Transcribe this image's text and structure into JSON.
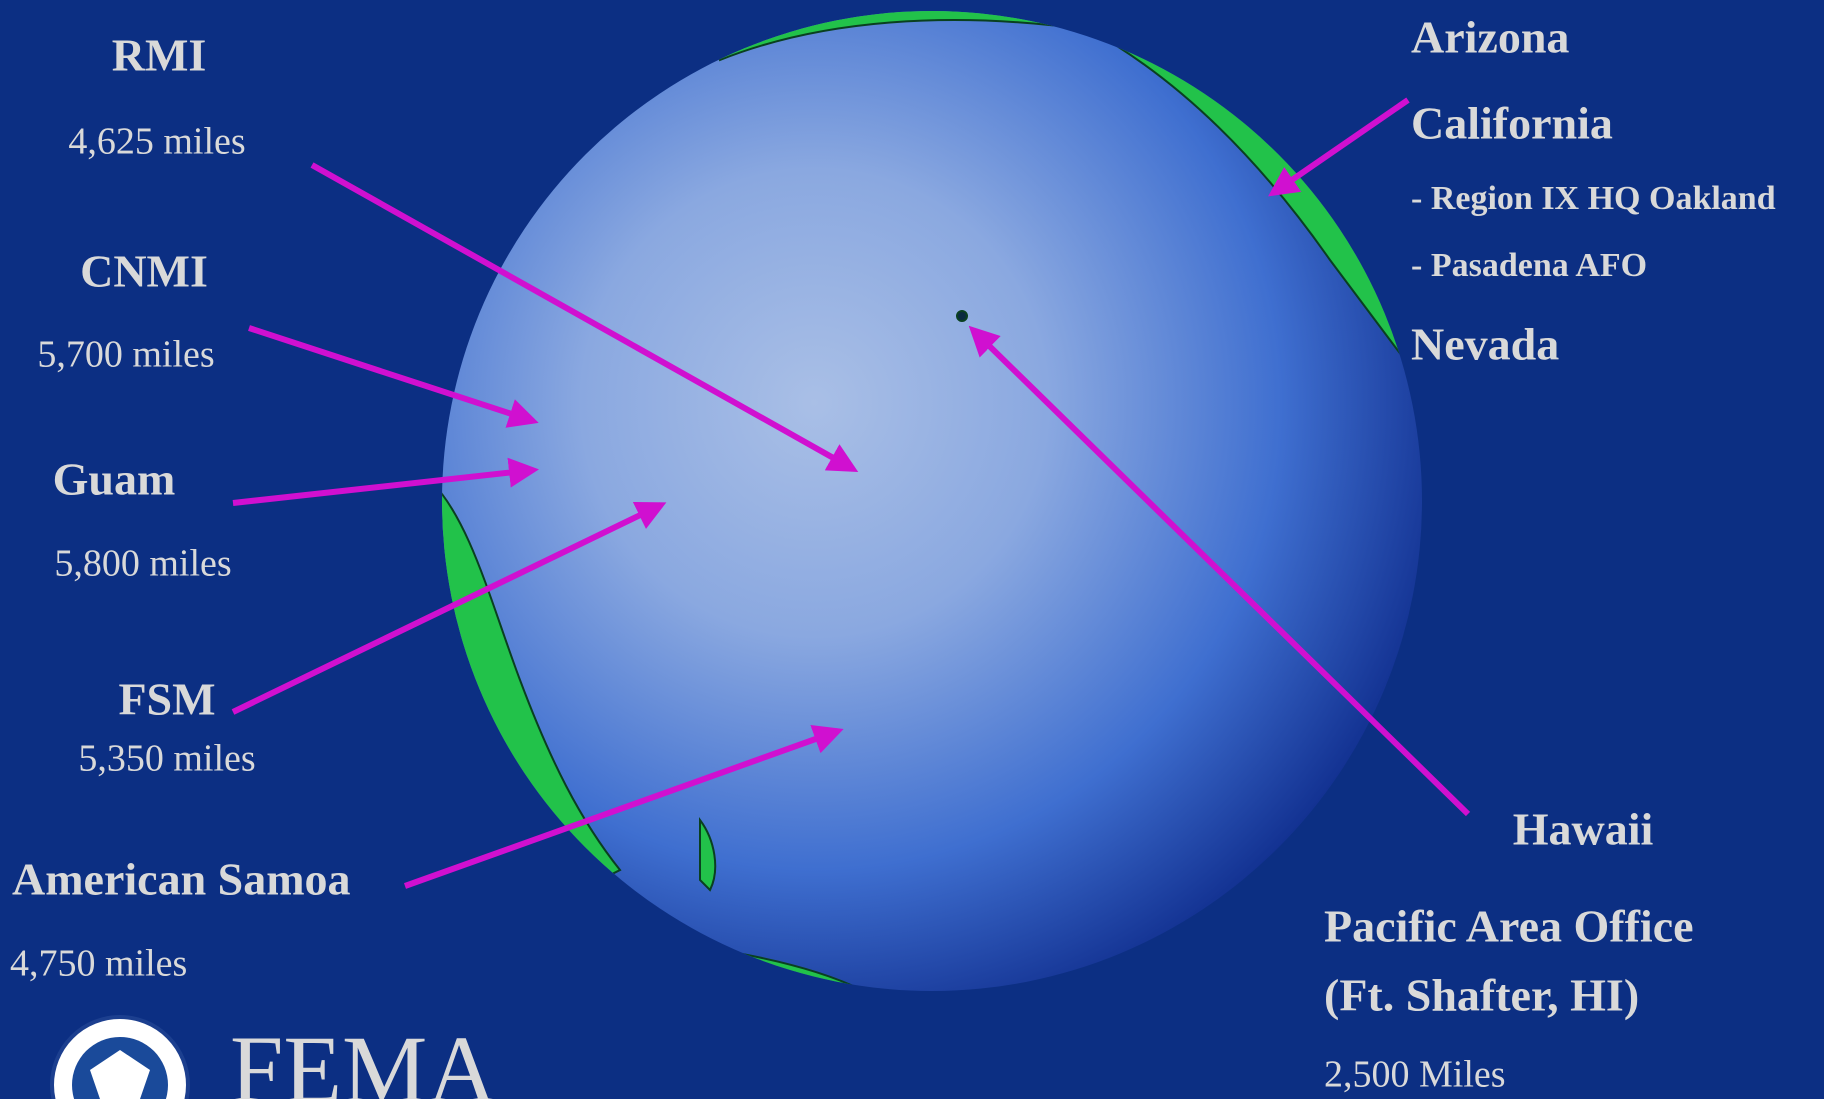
{
  "left_labels": [
    {
      "name": "RMI",
      "distance": "4,625 miles"
    },
    {
      "name": "CNMI",
      "distance": "5,700 miles"
    },
    {
      "name": "Guam",
      "distance": "5,800 miles"
    },
    {
      "name": "FSM",
      "distance": "5,350 miles"
    },
    {
      "name": "American Samoa",
      "distance": "4,750 miles"
    }
  ],
  "right_labels": {
    "states": [
      "Arizona",
      "California",
      "- Region IX HQ Oakland",
      "- Pasadena AFO",
      "Nevada"
    ],
    "hawaii": "Hawaii",
    "office": [
      "Pacific Area Office",
      "(Ft. Shafter, HI)"
    ],
    "distance": "2,500 Miles"
  },
  "logo": {
    "text": "FEMA"
  }
}
